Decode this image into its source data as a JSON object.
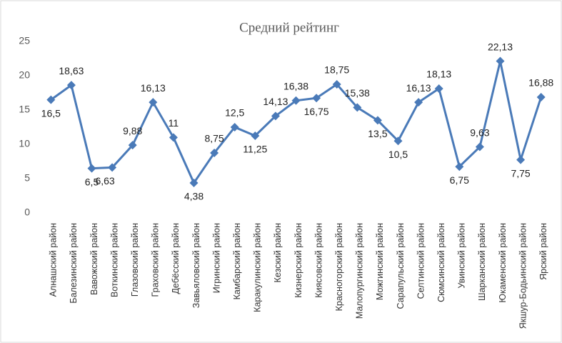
{
  "chart_data": {
    "type": "line",
    "title": "Средний рейтинг",
    "categories": [
      "Алнашский район",
      "Балезинский район",
      "Вавожский район",
      "Воткинский район",
      "Глазовский район",
      "Граховский район",
      "Дебёсский район",
      "Завьяловский район",
      "Игринский район",
      "Камбарский район",
      "Каракулинский район",
      "Кезский район",
      "Кизнерский район",
      "Киясовский район",
      "Красногорский район",
      "Малопургинский район",
      "Можгинский район",
      "Сарапульский район",
      "Селтинский район",
      "Сюмсинский район",
      "Увинский район",
      "Шарканский район",
      "Юкаменский район",
      "Якшур-Бодьинский район",
      "Ярский район"
    ],
    "values": [
      16.5,
      18.63,
      6.5,
      6.63,
      9.88,
      16.13,
      11,
      4.38,
      8.75,
      12.5,
      11.25,
      14.13,
      16.38,
      16.75,
      18.75,
      15.38,
      13.5,
      10.5,
      16.13,
      18.13,
      6.75,
      9.63,
      22.13,
      7.75,
      16.88
    ],
    "value_labels": [
      "16,5",
      "18,63",
      "6,5",
      "6,63",
      "9,88",
      "16,13",
      "11",
      "4,38",
      "8,75",
      "12,5",
      "11,25",
      "14,13",
      "16,38",
      "16,75",
      "18,75",
      "15,38",
      "13,5",
      "10,5",
      "16,13",
      "18,13",
      "6,75",
      "9,63",
      "22,13",
      "7,75",
      "16,88"
    ],
    "color": "#4a7ab8",
    "ylim": [
      0,
      25
    ],
    "yticks": [
      0,
      5,
      10,
      15,
      20,
      25
    ],
    "grid": false
  }
}
